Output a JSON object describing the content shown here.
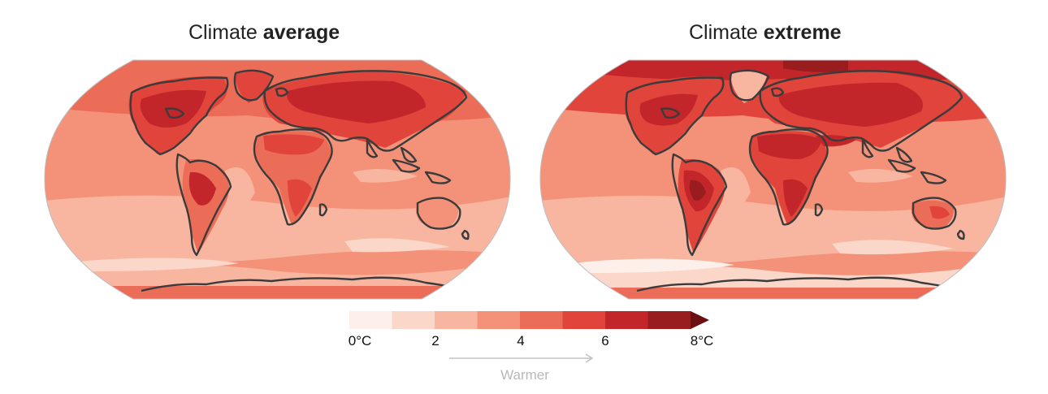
{
  "maps": [
    {
      "title_regular": "Climate ",
      "title_bold": "average"
    },
    {
      "title_regular": "Climate ",
      "title_bold": "extreme"
    }
  ],
  "legend": {
    "tick_labels": [
      "0°C",
      "2",
      "4",
      "6",
      "8°C"
    ],
    "arrow_label": "Warmer",
    "colors": [
      "#fdf0ea",
      "#fbd7c9",
      "#f8b5a0",
      "#f39279",
      "#ec6d57",
      "#e0443b",
      "#c3262a",
      "#991d1f",
      "#6b0f12"
    ]
  }
}
